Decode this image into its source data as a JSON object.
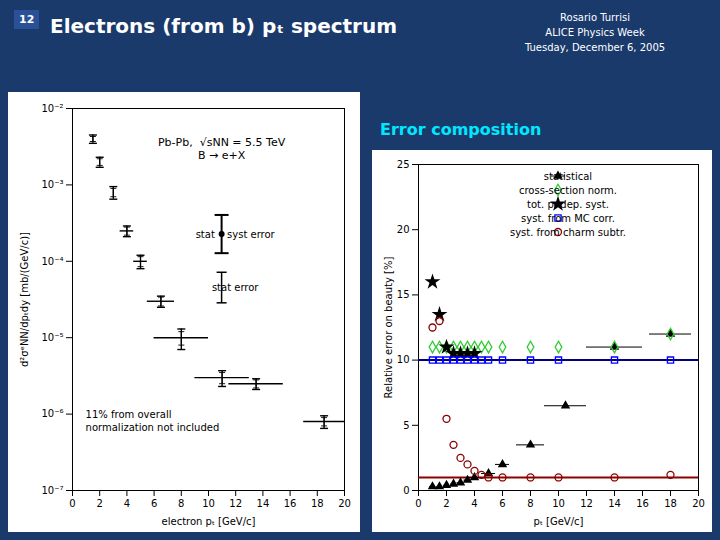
{
  "chart_data": [
    {
      "type": "scatter",
      "title": "Electrons (from b) pₜ spectrum",
      "subtitle": "Rosario Turrisi\nALICE Physics Week\nTuesday, December 6, 2005",
      "annotations": [
        "12",
        "Pb-Pb,  √sNN = 5.5 TeV\nB → e+X",
        "11% from overall\nnormalization not included"
      ],
      "xlabel": "electron pₜ [GeV/c]",
      "ylabel": "d²σᵉNN/dpₜdy [mb/(GeV/c)]",
      "x": [
        1.5,
        2.0,
        3.0,
        4.0,
        5.0,
        6.5,
        8.0,
        11.0,
        13.5,
        18.5
      ],
      "series": [
        {
          "name": "stat • syst error",
          "color": "black",
          "values": [
            0.004,
            0.002,
            0.0008,
            0.00025,
            0.0001,
            3e-05,
            1e-05,
            3e-06,
            2.5e-06,
            8e-07
          ],
          "xerr": [
            0.0,
            0.0,
            0.0,
            0.5,
            0.5,
            1.0,
            2.0,
            2.0,
            2.0,
            1.5
          ],
          "yerr": [
            0.0005,
            0.0003,
            0.00015,
            4e-05,
            2e-05,
            5e-06,
            3e-06,
            7e-07,
            4e-07,
            1.5e-07
          ]
        },
        {
          "name": "stat error",
          "color": "black",
          "values": [
            0.004,
            0.002,
            0.0008,
            0.00025,
            0.0001,
            3e-05,
            1e-05,
            3e-06,
            2.5e-06,
            8e-07
          ],
          "yerr": [
            0.0003,
            0.0002,
            0.0001,
            3e-05,
            1.5e-05,
            4e-06,
            2e-06,
            5e-07,
            3e-07,
            1e-07
          ]
        }
      ],
      "log": "y",
      "xlim": [
        0,
        20
      ],
      "ylim": [
        1e-07,
        0.01
      ],
      "xticks": [
        0,
        2,
        4,
        6,
        8,
        10,
        12,
        14,
        16,
        18,
        20
      ],
      "yticks": [
        {
          "value": 1e-07,
          "label": "10⁻⁷"
        },
        {
          "value": 1e-06,
          "label": "10⁻⁶"
        },
        {
          "value": 1e-05,
          "label": "10⁻⁵"
        },
        {
          "value": 0.0001,
          "label": "10⁻⁴"
        },
        {
          "value": 0.001,
          "label": "10⁻³"
        },
        {
          "value": 0.01,
          "label": "10⁻²"
        }
      ],
      "legend": "right"
    },
    {
      "type": "scatter",
      "title": "Error composition",
      "xlabel": "pₜ [GeV/c]",
      "ylabel": "Relative error on beauty [%]",
      "reference_lines": [
        {
          "y": 10.0,
          "color": "navy"
        },
        {
          "y": 1.0,
          "color": "darkred"
        }
      ],
      "series": [
        {
          "name": "statistical",
          "color": "black",
          "marker": "triangle",
          "x": [
            1.0,
            1.5,
            2.0,
            2.5,
            3.0,
            3.5,
            4.0,
            5.0,
            6.0,
            8.0,
            10.5,
            14.0,
            18.0
          ],
          "values": [
            0.3,
            0.3,
            0.4,
            0.5,
            0.6,
            0.8,
            1.0,
            1.3,
            2.0,
            3.5,
            6.5,
            11.0,
            12.0
          ],
          "xerr": [
            0.2,
            0.2,
            0.2,
            0.2,
            0.25,
            0.25,
            0.5,
            0.5,
            0.5,
            1.0,
            1.5,
            2.0,
            1.5
          ]
        },
        {
          "name": "cross-section norm.",
          "color": "limegreen",
          "marker": "diamond",
          "x": [
            1.0,
            1.5,
            2.0,
            2.5,
            3.0,
            3.5,
            4.0,
            4.5,
            5.0,
            6.0,
            8.0,
            10.0,
            14.0,
            18.0
          ],
          "values": [
            11.0,
            11.0,
            11.0,
            11.0,
            11.0,
            11.0,
            11.0,
            11.0,
            11.0,
            11.0,
            11.0,
            11.0,
            11.0,
            12.0
          ]
        },
        {
          "name": "tot. pₜ-dep. syst.",
          "color": "black",
          "marker": "star",
          "x": [
            1.0,
            1.5,
            2.0,
            2.5,
            3.0,
            3.5,
            4.0
          ],
          "values": [
            16.0,
            13.5,
            11.0,
            10.5,
            10.5,
            10.5,
            10.5
          ]
        },
        {
          "name": "syst. from MC corr.",
          "color": "blue",
          "marker": "square",
          "x": [
            1.0,
            1.5,
            2.0,
            2.5,
            3.0,
            3.5,
            4.0,
            4.5,
            5.0,
            6.0,
            8.0,
            10.0,
            14.0,
            18.0
          ],
          "values": [
            10.0,
            10.0,
            10.0,
            10.0,
            10.0,
            10.0,
            10.0,
            10.0,
            10.0,
            10.0,
            10.0,
            10.0,
            10.0,
            10.0
          ]
        },
        {
          "name": "syst. from charm subtr.",
          "color": "darkred",
          "marker": "circle",
          "x": [
            1.0,
            1.5,
            2.0,
            2.5,
            3.0,
            3.5,
            4.0,
            4.5,
            5.0,
            6.0,
            8.0,
            10.0,
            14.0,
            18.0
          ],
          "values": [
            12.5,
            13.0,
            5.5,
            3.5,
            2.5,
            2.0,
            1.5,
            1.2,
            1.0,
            1.0,
            1.0,
            1.0,
            1.0,
            1.2
          ]
        }
      ],
      "xlim": [
        0,
        20
      ],
      "ylim": [
        0,
        25
      ],
      "xticks": [
        0,
        2,
        4,
        6,
        8,
        10,
        12,
        14,
        16,
        18,
        20
      ],
      "yticks": [
        0,
        5,
        10,
        15,
        20,
        25
      ],
      "legend": "upper right"
    }
  ]
}
